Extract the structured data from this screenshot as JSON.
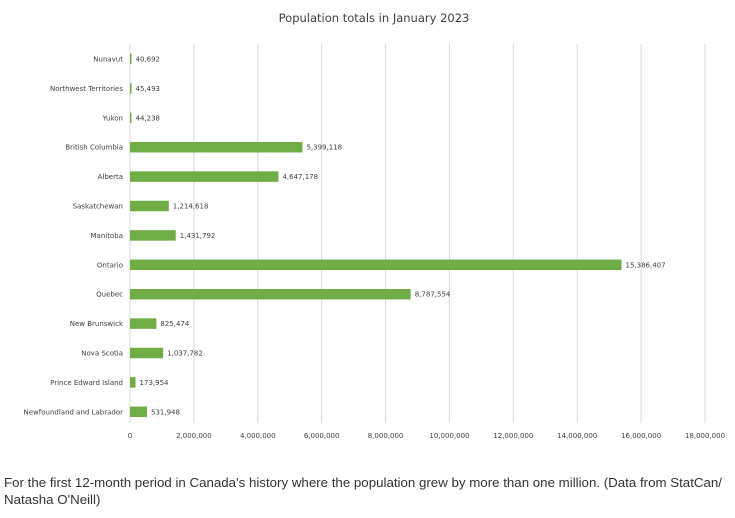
{
  "chart_data": {
    "type": "bar",
    "orientation": "horizontal",
    "title": "Population totals in January 2023",
    "xlabel": "",
    "ylabel": "",
    "categories": [
      "Nunavut",
      "Northwest Territories",
      "Yukon",
      "British Columbia",
      "Alberta",
      "Saskatchewan",
      "Manitoba",
      "Ontario",
      "Quebec",
      "New Brunswick",
      "Nova Scotia",
      "Prince Edward Island",
      "Newfoundland and Labrador"
    ],
    "values": [
      40692,
      45493,
      44238,
      5399118,
      4647178,
      1214618,
      1431792,
      15386407,
      8787554,
      825474,
      1037782,
      173954,
      531948
    ],
    "value_labels": [
      "40,692",
      "45,493",
      "44,238",
      "5,399,118",
      "4,647,178",
      "1,214,618",
      "1,431,792",
      "15,386,407",
      "8,787,554",
      "825,474",
      "1,037,782",
      "173,954",
      "531,948"
    ],
    "xlim": [
      0,
      18000000
    ],
    "x_ticks": [
      0,
      2000000,
      4000000,
      6000000,
      8000000,
      10000000,
      12000000,
      14000000,
      16000000,
      18000000
    ],
    "x_tick_labels": [
      "0",
      "2,000,000",
      "4,000,000",
      "6,000,000",
      "8,000,000",
      "10,000,000",
      "12,000,000",
      "14,000,000",
      "16,000,000",
      "18,000,000"
    ],
    "grid": "vertical",
    "legend": "none",
    "bar_color": "#70ad47"
  },
  "caption": "For the first 12-month period in Canada's history where the population grew by more than one million. (Data from StatCan/ Natasha O'Neill)"
}
